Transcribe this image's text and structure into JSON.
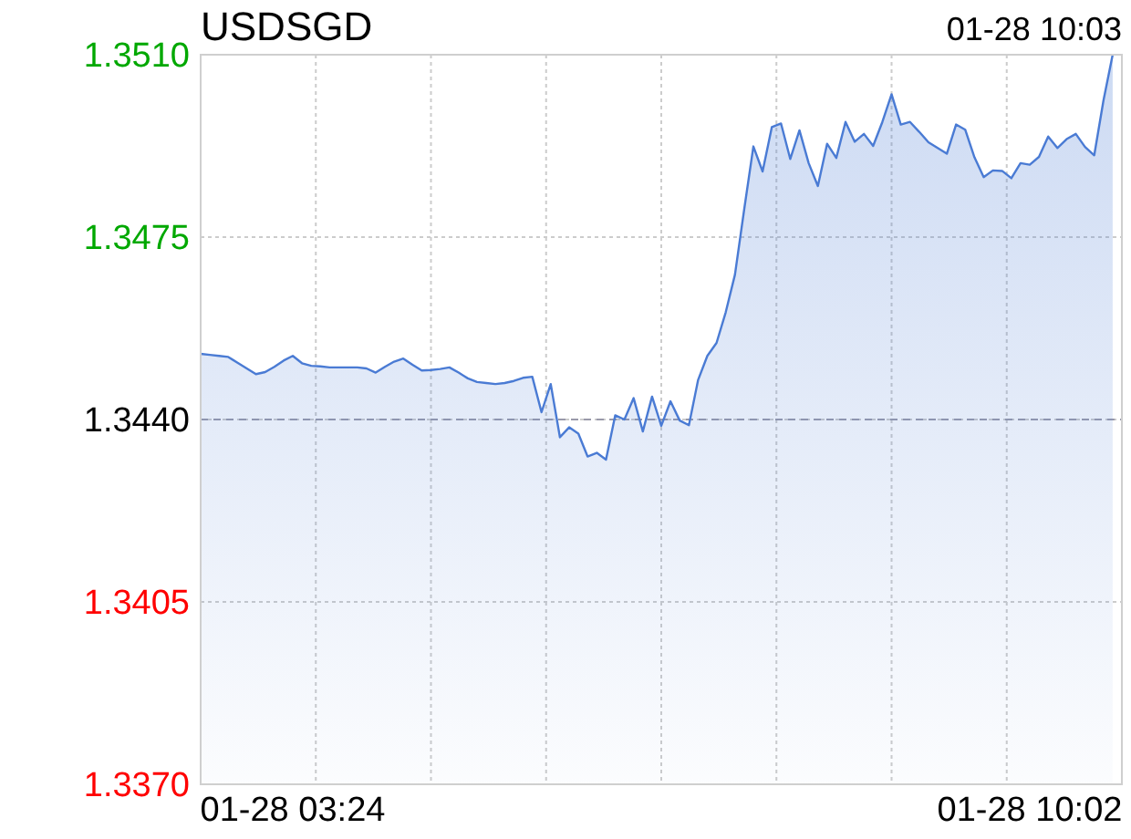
{
  "chart_data": {
    "type": "area",
    "title": "USDSGD",
    "annotations": [
      "01-28 10:03"
    ],
    "categories": [
      null,
      null,
      null,
      null,
      null,
      null,
      null,
      null,
      null,
      null,
      "01-28 03:24",
      null,
      null,
      null,
      null,
      null,
      null,
      null,
      null,
      null,
      null,
      null,
      null,
      null,
      null,
      null,
      null,
      null,
      null,
      null,
      null,
      null,
      null,
      null,
      null,
      null,
      null,
      null,
      null,
      null,
      null,
      null,
      null,
      null,
      null,
      null,
      null,
      null,
      null,
      null,
      null,
      null,
      null,
      null,
      null,
      null,
      null,
      null,
      null,
      null,
      null,
      null,
      null,
      null,
      null,
      null,
      null,
      null,
      null,
      null,
      null,
      null,
      null,
      null,
      null,
      null,
      null,
      null,
      null,
      null,
      null,
      null,
      null,
      null,
      null,
      null,
      null,
      null,
      null,
      null,
      "01-28 10:02",
      null,
      null,
      null,
      null,
      null,
      null,
      null,
      null,
      null,
      null
    ],
    "series": [
      {
        "color": "#4a7bd4",
        "values": [
          1.34526,
          1.34524,
          1.34522,
          1.3452,
          1.34509,
          1.34498,
          1.34487,
          1.34491,
          1.34501,
          1.34513,
          1.34522,
          1.34508,
          1.34503,
          1.34502,
          1.345,
          1.345,
          1.345,
          1.345,
          1.34498,
          1.3449,
          1.34501,
          1.34511,
          1.34517,
          1.34505,
          1.34494,
          1.34495,
          1.34497,
          1.345,
          1.3449,
          1.34479,
          1.34472,
          1.3447,
          1.34468,
          1.3447,
          1.34474,
          1.3448,
          1.34482,
          1.34414,
          1.34468,
          1.34366,
          1.34385,
          1.34373,
          1.34329,
          1.34336,
          1.34323,
          1.34408,
          1.344,
          1.34441,
          1.34377,
          1.34444,
          1.34388,
          1.34435,
          1.34398,
          1.34389,
          1.34476,
          1.34522,
          1.34547,
          1.34606,
          1.34678,
          1.34803,
          1.34924,
          1.34876,
          1.34961,
          1.34968,
          1.349,
          1.34955,
          1.34892,
          1.34848,
          1.34929,
          1.34902,
          1.34971,
          1.34933,
          1.34948,
          1.34925,
          1.34971,
          1.35024,
          1.34966,
          1.34971,
          1.34952,
          1.34932,
          1.34921,
          1.3491,
          1.34966,
          1.34956,
          1.34903,
          1.34865,
          1.34878,
          1.34877,
          1.34863,
          1.34892,
          1.34889,
          1.34904,
          1.34943,
          1.34921,
          1.34938,
          1.34948,
          1.34923,
          1.34907,
          1.35012,
          1.351,
          null
        ]
      }
    ],
    "ylim": [
      1.337,
      1.351
    ],
    "yticks": [
      {
        "value": 1.351,
        "label": "1.3510"
      },
      {
        "value": 1.3475,
        "label": "1.3475"
      },
      {
        "value": 1.344,
        "label": "1.3440"
      },
      {
        "value": 1.3405,
        "label": "1.3405"
      },
      {
        "value": 1.337,
        "label": "1.3370"
      }
    ],
    "ref_lines": [
      {
        "axis": "y",
        "value": 1.344,
        "label": null,
        "color": "#9a9aaa",
        "line_style": "dashed"
      }
    ],
    "grid": true
  }
}
